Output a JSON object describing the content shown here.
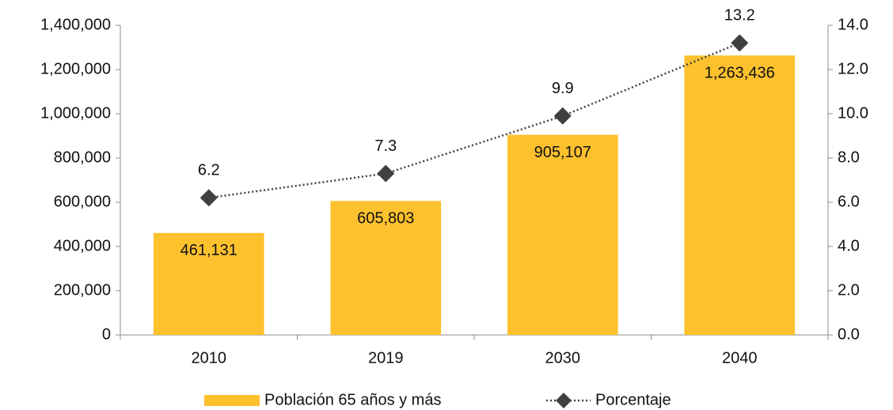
{
  "chart_data": {
    "type": "bar",
    "categories": [
      "2010",
      "2019",
      "2030",
      "2040"
    ],
    "series": [
      {
        "name": "Población 65 años y más",
        "type": "bar",
        "color": "#fdc12e",
        "values": [
          461131,
          605803,
          905107,
          1263436
        ],
        "value_labels": [
          "461,131",
          "605,803",
          "905,107",
          "1,263,436"
        ]
      },
      {
        "name": "Porcentaje",
        "type": "line",
        "axis": "y2",
        "color": "#404040",
        "values": [
          6.2,
          7.3,
          9.9,
          13.2
        ]
      }
    ],
    "ylim": [
      0,
      1400000
    ],
    "yticks": [
      0,
      {
        "value": 200000,
        "label": "200,000"
      },
      {
        "value": 400000,
        "label": "400,000"
      },
      {
        "value": 600000,
        "label": "600,000"
      },
      {
        "value": 800000,
        "label": "800,000"
      },
      {
        "value": 1000000,
        "label": "1,000,000"
      },
      {
        "value": 1200000,
        "label": "1,200,000"
      },
      {
        "value": 1400000,
        "label": "1,400,000"
      }
    ],
    "y2lim": [
      0,
      14
    ],
    "y2ticks": [
      {
        "value": 0,
        "label": "0.0"
      },
      {
        "value": 2,
        "label": "2.0"
      },
      {
        "value": 4,
        "label": "4.0"
      },
      {
        "value": 6,
        "label": "6.0"
      },
      {
        "value": 8,
        "label": "8.0"
      },
      {
        "value": 10,
        "label": "10.0"
      },
      {
        "value": 12,
        "label": "12.0"
      },
      {
        "value": 14,
        "label": "14.0"
      }
    ],
    "grid": false,
    "legend": "bottom"
  }
}
